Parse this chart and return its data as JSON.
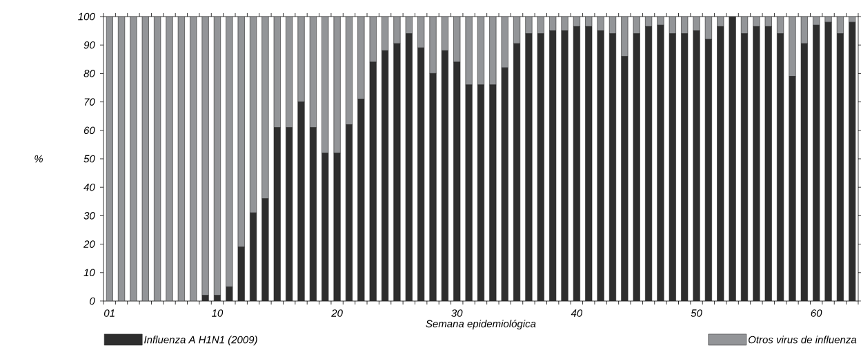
{
  "chart_data": {
    "type": "bar",
    "stacked": true,
    "xlabel": "Semana epidemiológica",
    "ylabel": "%",
    "categories": [
      "01",
      null,
      null,
      null,
      null,
      null,
      null,
      null,
      null,
      "10",
      null,
      null,
      null,
      null,
      null,
      null,
      null,
      null,
      null,
      "20",
      null,
      null,
      null,
      null,
      null,
      null,
      null,
      null,
      null,
      "30",
      null,
      null,
      null,
      null,
      null,
      null,
      null,
      null,
      null,
      "40",
      null,
      null,
      null,
      null,
      null,
      null,
      null,
      null,
      null,
      "50",
      null,
      null,
      null,
      null,
      null,
      null,
      null,
      null,
      null,
      "60",
      null,
      null,
      null
    ],
    "series": [
      {
        "name": "Influenza A H1N1 (2009)",
        "color": "#2e2e2e",
        "values": [
          0,
          0,
          0,
          0,
          0,
          0,
          0,
          0,
          2,
          2,
          5,
          19,
          31,
          36,
          61,
          61,
          70,
          61,
          52,
          52,
          62,
          71,
          84,
          88,
          90.5,
          94,
          89,
          80,
          88,
          84,
          76,
          76,
          76,
          82,
          90.5,
          94,
          94,
          95,
          95,
          96.5,
          96.5,
          95,
          94,
          86,
          94,
          96.5,
          97,
          94,
          94,
          95,
          92,
          96.5,
          100,
          94,
          96.5,
          96.5,
          94,
          79,
          90.5,
          97,
          98,
          94,
          98
        ]
      },
      {
        "name": "Otros virus de influenza",
        "color": "#939598",
        "values": [
          100,
          100,
          100,
          100,
          100,
          100,
          100,
          100,
          98,
          98,
          95,
          81,
          69,
          64,
          39,
          39,
          30,
          39,
          48,
          48,
          38,
          29,
          16,
          12,
          9.5,
          6,
          11,
          20,
          12,
          16,
          24,
          24,
          24,
          18,
          9.5,
          6,
          6,
          5,
          5,
          3.5,
          3.5,
          5,
          6,
          14,
          6,
          3.5,
          3,
          6,
          6,
          5,
          8,
          3.5,
          0,
          6,
          3.5,
          3.5,
          6,
          21,
          9.5,
          3,
          2,
          6,
          2
        ]
      }
    ],
    "ylim": [
      0,
      100
    ],
    "yticks": [
      0,
      10,
      20,
      30,
      40,
      50,
      60,
      70,
      80,
      90,
      100
    ],
    "legend": "bottom",
    "grid": false
  }
}
